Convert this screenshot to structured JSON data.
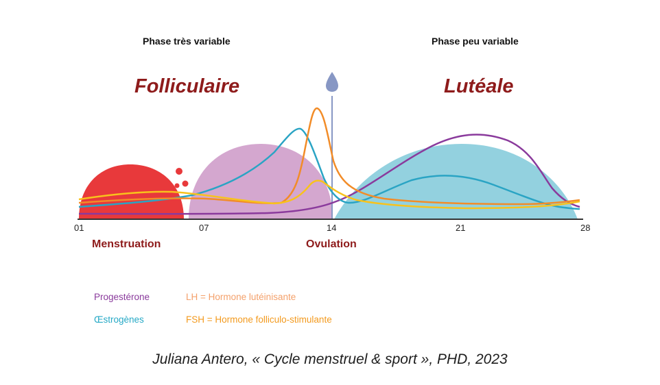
{
  "phases": {
    "follicular": {
      "caption": "Phase très variable",
      "name": "Folliculaire"
    },
    "luteal": {
      "caption": "Phase peu variable",
      "name": "Lutéale"
    }
  },
  "axis": {
    "ticks": [
      "01",
      "07",
      "14",
      "21",
      "28"
    ]
  },
  "events": {
    "menstruation": "Menstruation",
    "ovulation": "Ovulation"
  },
  "legend": {
    "progesterone": {
      "label": "Progestérone",
      "color": "#8a3a9c"
    },
    "estrogens": {
      "label": "Œstrogènes",
      "color": "#26a9c6"
    },
    "lh": {
      "label": "LH = Hormone lutéinisante",
      "color": "#f4a06a"
    },
    "fsh": {
      "label": "FSH = Hormone folliculo-stimulante",
      "color": "#f39a1e"
    }
  },
  "colors": {
    "menstruation_fill": "#e8393b",
    "follicular_fill": "#d4a7cf",
    "luteal_fill": "#93d1df",
    "ovulation_marker": "#8797c4",
    "lh_curve": "#f28c28",
    "fsh_curve": "#f8c21c",
    "progesterone_curve": "#8a3a9c",
    "estrogen_curve": "#2aa4c4"
  },
  "citation": "Juliana Antero, « Cycle menstruel & sport », PHD, 2023"
}
